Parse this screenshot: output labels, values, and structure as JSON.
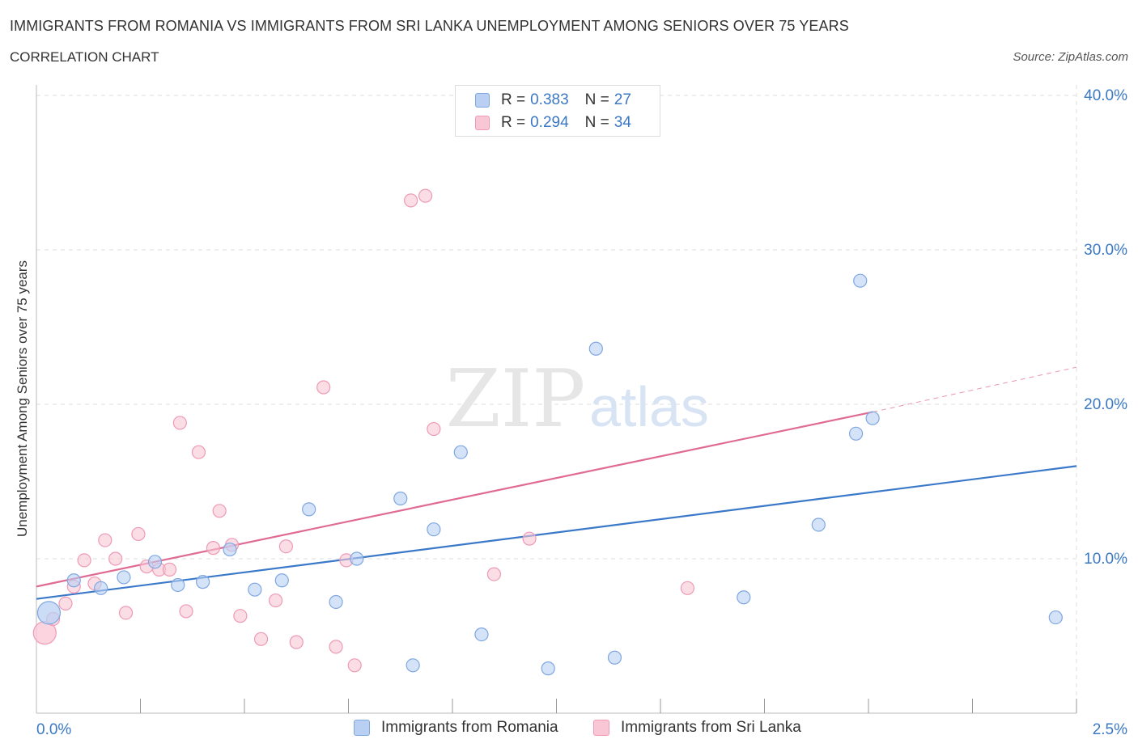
{
  "header": {
    "title": "IMMIGRANTS FROM ROMANIA VS IMMIGRANTS FROM SRI LANKA UNEMPLOYMENT AMONG SENIORS OVER 75 YEARS",
    "subtitle": "CORRELATION CHART",
    "source": "Source: ZipAtlas.com"
  },
  "legend": {
    "r_label": "R =",
    "n_label": "N =",
    "series": [
      {
        "name": "Immigrants from Romania",
        "r": "0.383",
        "n": "27"
      },
      {
        "name": "Immigrants from Sri Lanka",
        "r": "0.294",
        "n": "34"
      }
    ]
  },
  "colors": {
    "romania_fill": "#b9d0f3",
    "romania_stroke": "#7fa7e0",
    "romania_line": "#3a78c9",
    "srilanka_fill": "#f9c6d6",
    "srilanka_stroke": "#ee9ab5",
    "srilanka_line": "#e06a93",
    "axis_text": "#3b78c4",
    "grid": "#dddddd"
  },
  "chart_data": {
    "type": "scatter",
    "title": "IMMIGRANTS FROM ROMANIA VS IMMIGRANTS FROM SRI LANKA UNEMPLOYMENT AMONG SENIORS OVER 75 YEARS",
    "xlabel": "",
    "ylabel": "Unemployment Among Seniors over 75 years",
    "xlim": [
      0,
      2.5
    ],
    "ylim": [
      0,
      40
    ],
    "x_ticks": [
      0.0,
      2.5
    ],
    "x_tick_labels": [
      "0.0%",
      "2.5%"
    ],
    "y_ticks": [
      10,
      20,
      30,
      40
    ],
    "y_tick_labels": [
      "10.0%",
      "20.0%",
      "30.0%",
      "40.0%"
    ],
    "grid": true,
    "watermark": {
      "main": "ZIP",
      "sub": "atlas"
    },
    "series": [
      {
        "name": "Immigrants from Romania",
        "color": "#3a78c9",
        "points": [
          [
            0.03,
            6.5
          ],
          [
            0.09,
            8.6
          ],
          [
            0.155,
            8.1
          ],
          [
            0.21,
            8.8
          ],
          [
            0.285,
            9.8
          ],
          [
            0.34,
            8.3
          ],
          [
            0.4,
            8.5
          ],
          [
            0.465,
            10.6
          ],
          [
            0.525,
            8.0
          ],
          [
            0.59,
            8.6
          ],
          [
            0.655,
            13.2
          ],
          [
            0.72,
            7.2
          ],
          [
            0.77,
            10.0
          ],
          [
            0.875,
            13.9
          ],
          [
            0.905,
            3.1
          ],
          [
            0.955,
            11.9
          ],
          [
            1.02,
            16.9
          ],
          [
            1.07,
            5.1
          ],
          [
            1.23,
            2.9
          ],
          [
            1.345,
            23.6
          ],
          [
            1.39,
            3.6
          ],
          [
            1.7,
            7.5
          ],
          [
            1.88,
            12.2
          ],
          [
            1.97,
            18.1
          ],
          [
            1.98,
            28.0
          ],
          [
            2.01,
            19.1
          ],
          [
            2.45,
            6.2
          ]
        ],
        "trend": {
          "x": [
            0.0,
            2.5
          ],
          "y": [
            7.4,
            16.0
          ]
        }
      },
      {
        "name": "Immigrants from Sri Lanka",
        "color": "#e06a93",
        "points": [
          [
            0.02,
            5.2
          ],
          [
            0.04,
            6.1
          ],
          [
            0.07,
            7.1
          ],
          [
            0.09,
            8.2
          ],
          [
            0.115,
            9.9
          ],
          [
            0.14,
            8.4
          ],
          [
            0.165,
            11.2
          ],
          [
            0.19,
            10.0
          ],
          [
            0.215,
            6.5
          ],
          [
            0.245,
            11.6
          ],
          [
            0.265,
            9.5
          ],
          [
            0.295,
            9.3
          ],
          [
            0.32,
            9.3
          ],
          [
            0.345,
            18.8
          ],
          [
            0.36,
            6.6
          ],
          [
            0.39,
            16.9
          ],
          [
            0.425,
            10.7
          ],
          [
            0.44,
            13.1
          ],
          [
            0.47,
            10.9
          ],
          [
            0.49,
            6.3
          ],
          [
            0.54,
            4.8
          ],
          [
            0.575,
            7.3
          ],
          [
            0.6,
            10.8
          ],
          [
            0.625,
            4.6
          ],
          [
            0.69,
            21.1
          ],
          [
            0.72,
            4.3
          ],
          [
            0.745,
            9.9
          ],
          [
            0.765,
            3.1
          ],
          [
            0.9,
            33.2
          ],
          [
            0.935,
            33.5
          ],
          [
            0.955,
            18.4
          ],
          [
            1.1,
            9.0
          ],
          [
            1.185,
            11.3
          ],
          [
            1.565,
            8.1
          ]
        ],
        "trend": {
          "x": [
            0.0,
            2.01
          ],
          "y": [
            8.2,
            19.5
          ]
        },
        "trend_dashed": {
          "x": [
            2.01,
            2.5
          ],
          "y": [
            19.5,
            22.4
          ]
        }
      }
    ]
  }
}
